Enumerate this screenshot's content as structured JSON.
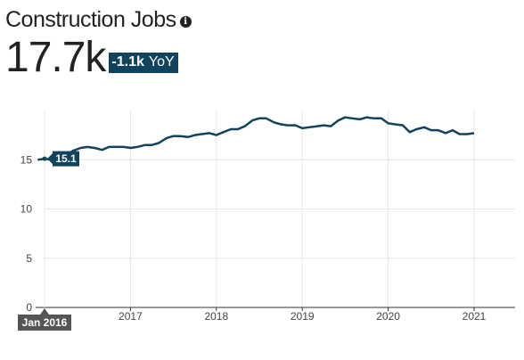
{
  "header": {
    "title": "Construction Jobs",
    "info_icon": "info-icon",
    "metric_value": "17.7k",
    "yoy_change": "-1.1k",
    "yoy_label": "YoY"
  },
  "colors": {
    "line": "#11435e",
    "badge": "#11435e",
    "grid": "#e6e6e6",
    "axis": "#333333",
    "tooltip_x": "#555555"
  },
  "tooltip": {
    "value_label": "15.1",
    "x_label": "Jan 2016"
  },
  "chart_data": {
    "type": "line",
    "title": "",
    "xlabel": "",
    "ylabel": "",
    "ylim": [
      0,
      20
    ],
    "xlim": [
      2016,
      2021.5
    ],
    "x_ticks": [
      2017,
      2018,
      2019,
      2020,
      2021
    ],
    "x_tick_labels": [
      "2017",
      "2018",
      "2019",
      "2020",
      "2021"
    ],
    "y_ticks": [
      0,
      5,
      10,
      15
    ],
    "y_tick_labels": [
      "0",
      "5",
      "10",
      "15"
    ],
    "grid": true,
    "series": [
      {
        "values": [
          [
            2015.92,
            15.0
          ],
          [
            2016.0,
            15.1
          ],
          [
            2016.08,
            15.0
          ],
          [
            2016.17,
            15.2
          ],
          [
            2016.25,
            15.5
          ],
          [
            2016.33,
            15.9
          ],
          [
            2016.42,
            16.2
          ],
          [
            2016.5,
            16.3
          ],
          [
            2016.58,
            16.2
          ],
          [
            2016.67,
            16.0
          ],
          [
            2016.75,
            16.3
          ],
          [
            2016.83,
            16.3
          ],
          [
            2016.92,
            16.3
          ],
          [
            2017.0,
            16.2
          ],
          [
            2017.08,
            16.3
          ],
          [
            2017.17,
            16.5
          ],
          [
            2017.25,
            16.5
          ],
          [
            2017.33,
            16.7
          ],
          [
            2017.42,
            17.2
          ],
          [
            2017.5,
            17.4
          ],
          [
            2017.58,
            17.4
          ],
          [
            2017.67,
            17.3
          ],
          [
            2017.75,
            17.5
          ],
          [
            2017.83,
            17.6
          ],
          [
            2017.92,
            17.7
          ],
          [
            2018.0,
            17.5
          ],
          [
            2018.08,
            17.8
          ],
          [
            2018.17,
            18.1
          ],
          [
            2018.25,
            18.1
          ],
          [
            2018.33,
            18.4
          ],
          [
            2018.42,
            19.0
          ],
          [
            2018.5,
            19.2
          ],
          [
            2018.58,
            19.2
          ],
          [
            2018.67,
            18.8
          ],
          [
            2018.75,
            18.6
          ],
          [
            2018.83,
            18.5
          ],
          [
            2018.92,
            18.5
          ],
          [
            2019.0,
            18.2
          ],
          [
            2019.08,
            18.3
          ],
          [
            2019.17,
            18.4
          ],
          [
            2019.25,
            18.5
          ],
          [
            2019.33,
            18.4
          ],
          [
            2019.42,
            19.0
          ],
          [
            2019.5,
            19.3
          ],
          [
            2019.58,
            19.2
          ],
          [
            2019.67,
            19.1
          ],
          [
            2019.75,
            19.3
          ],
          [
            2019.83,
            19.2
          ],
          [
            2019.92,
            19.2
          ],
          [
            2020.0,
            18.7
          ],
          [
            2020.08,
            18.6
          ],
          [
            2020.17,
            18.5
          ],
          [
            2020.25,
            17.8
          ],
          [
            2020.33,
            18.1
          ],
          [
            2020.42,
            18.3
          ],
          [
            2020.5,
            18.0
          ],
          [
            2020.58,
            18.0
          ],
          [
            2020.67,
            17.7
          ],
          [
            2020.75,
            18.0
          ],
          [
            2020.83,
            17.6
          ],
          [
            2020.92,
            17.6
          ],
          [
            2021.0,
            17.7
          ]
        ]
      }
    ]
  }
}
